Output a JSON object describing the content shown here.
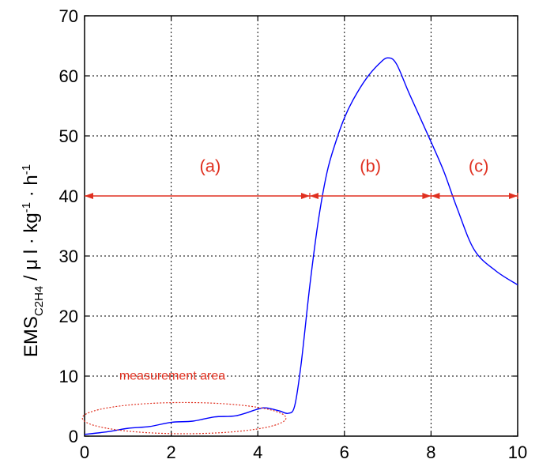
{
  "chart_data": {
    "type": "line",
    "xlabel": "",
    "ylabel": {
      "main": "EMS",
      "subscript": "C2H4",
      "unit_a": " / μ l · kg",
      "exp1": "-1",
      "unit_b": " · h",
      "exp2": "-1"
    },
    "xlim": [
      0,
      10
    ],
    "ylim": [
      0,
      70
    ],
    "xticks": [
      "0",
      "2",
      "4",
      "6",
      "8",
      "10"
    ],
    "yticks": [
      "0",
      "10",
      "20",
      "30",
      "40",
      "50",
      "60",
      "70"
    ],
    "xtick_values": [
      0,
      2,
      4,
      6,
      8,
      10
    ],
    "ytick_values": [
      0,
      10,
      20,
      30,
      40,
      50,
      60,
      70
    ],
    "grid": true,
    "series": [
      {
        "color": "#0000ff",
        "x": [
          0,
          0.5,
          1,
          1.5,
          2,
          2.5,
          3,
          3.5,
          4,
          4.2,
          4.5,
          4.7,
          4.85,
          5,
          5.2,
          5.4,
          5.6,
          5.8,
          6,
          6.2,
          6.5,
          6.8,
          7,
          7.2,
          7.5,
          8,
          8.3,
          8.6,
          9,
          9.5,
          10
        ],
        "y": [
          0.3,
          0.7,
          1.3,
          1.6,
          2.3,
          2.5,
          3.2,
          3.4,
          4.5,
          4.7,
          4.2,
          3.8,
          5,
          12,
          25,
          36,
          44,
          49,
          53,
          56,
          59.5,
          62,
          63,
          62,
          57,
          49,
          44,
          38,
          31,
          27.5,
          25.2
        ]
      }
    ],
    "annotations": {
      "arrow_y": 40,
      "segments": [
        {
          "label": "(a)",
          "x_start": 0,
          "x_end": 5.2,
          "label_x": 2.9,
          "label_y": 44
        },
        {
          "label": "(b)",
          "x_start": 5.2,
          "x_end": 8,
          "label_x": 6.6,
          "label_y": 44
        },
        {
          "label": "(c)",
          "x_start": 8,
          "x_end": 10,
          "label_x": 9.1,
          "label_y": 44
        }
      ],
      "measurement_area": {
        "label": "measurement area",
        "cx": 2.3,
        "cy": 3,
        "rx": 2.35,
        "ry": 2.6,
        "label_x": 0.8,
        "label_y": 9.4
      },
      "color": "#e03020"
    }
  }
}
